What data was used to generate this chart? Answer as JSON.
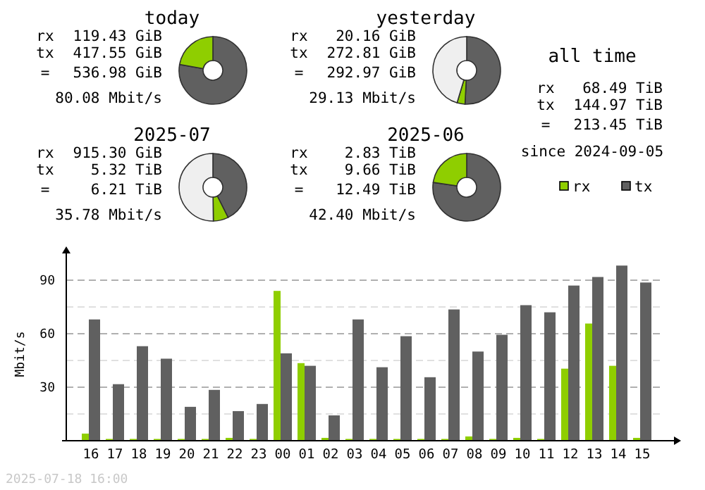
{
  "chart_data": [
    {
      "type": "donut",
      "title": "today",
      "categories": [
        null,
        null
      ],
      "values": [
        77.8,
        22.2
      ],
      "colors": [
        "#606060",
        "#8fce00"
      ],
      "legend": false,
      "annotations": [
        "rx",
        "119.43 GiB",
        "tx",
        "417.55 GiB",
        "=",
        "536.98 GiB",
        "80.08 Mbit/s"
      ]
    },
    {
      "type": "donut",
      "title": "yesterday",
      "categories": [
        null,
        null,
        null
      ],
      "values": [
        50.8,
        3.8,
        45.4
      ],
      "colors": [
        "#606060",
        "#8fce00",
        "#efefef"
      ],
      "legend": false,
      "annotations": [
        "rx",
        "20.16 GiB",
        "tx",
        "272.81 GiB",
        "=",
        "292.97 GiB",
        "29.13 Mbit/s"
      ]
    },
    {
      "type": "other",
      "title": "all time",
      "annotations": [
        "rx",
        "68.49 TiB",
        "tx",
        "144.97 TiB",
        "=",
        "213.45 TiB",
        "since 2024-09-05"
      ]
    },
    {
      "type": "donut",
      "title": "2025-07",
      "categories": [
        null,
        null,
        null
      ],
      "values": [
        42.6,
        7.2,
        50.2
      ],
      "colors": [
        "#606060",
        "#8fce00",
        "#efefef"
      ],
      "legend": false,
      "annotations": [
        "rx",
        "915.30 GiB",
        "tx",
        "5.32 TiB",
        "=",
        "6.21 TiB",
        "35.78 Mbit/s"
      ]
    },
    {
      "type": "donut",
      "title": "2025-06",
      "categories": [
        null,
        null
      ],
      "values": [
        77.3,
        22.7
      ],
      "colors": [
        "#606060",
        "#8fce00"
      ],
      "legend": false,
      "annotations": [
        "rx",
        "2.83 TiB",
        "tx",
        "9.66 TiB",
        "=",
        "12.49 TiB",
        "42.40 Mbit/s"
      ]
    },
    {
      "type": "bar",
      "ylabel": "Mbit/s",
      "categories": [
        "16",
        "17",
        "18",
        "19",
        "20",
        "21",
        "22",
        "23",
        "00",
        "01",
        "02",
        "03",
        "04",
        "05",
        "06",
        "07",
        "08",
        "09",
        "10",
        "11",
        "12",
        "13",
        "14",
        "15"
      ],
      "series": [
        {
          "name": "rx",
          "color": "#8fce00",
          "values": [
            4,
            1,
            1,
            1,
            1,
            1,
            1.6,
            1,
            84,
            43.5,
            1.6,
            1,
            1,
            1,
            1,
            1,
            2.4,
            1,
            1.6,
            1,
            40.4,
            65.7,
            42,
            1.6
          ]
        },
        {
          "name": "tx",
          "color": "#606060",
          "values": [
            68,
            31.7,
            53,
            46,
            19,
            28.5,
            16.6,
            20.6,
            49,
            42,
            14.2,
            68,
            41.2,
            58.6,
            35.6,
            73.6,
            50,
            59.4,
            76,
            72,
            87,
            91.8,
            98.2,
            88.7
          ]
        }
      ],
      "ylim": [
        0,
        105
      ],
      "yticks": [
        {
          "value": 15,
          "label": null
        },
        30,
        {
          "value": 45,
          "label": null
        },
        60,
        {
          "value": 75,
          "label": null
        },
        90
      ],
      "grid": "y",
      "legend": "top right",
      "annotations": [
        "2025-07-18 16:00"
      ]
    }
  ]
}
